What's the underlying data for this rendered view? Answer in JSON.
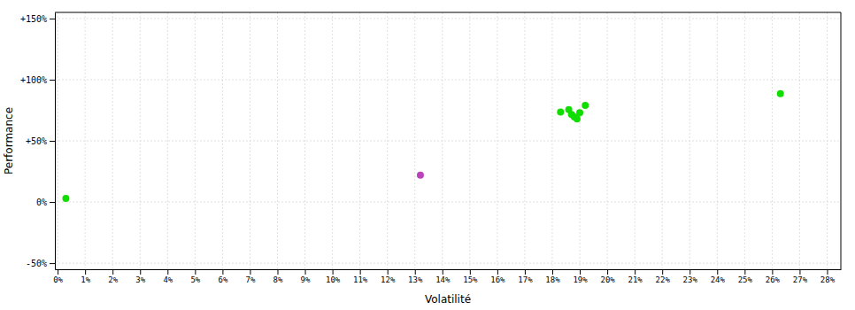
{
  "chart_data": {
    "type": "scatter",
    "xlabel": "Volatilité",
    "ylabel": "Performance",
    "xlim": [
      -0.001,
      0.285
    ],
    "ylim": [
      -0.55,
      1.55
    ],
    "grid": true,
    "xticks": [
      {
        "value": 0.0,
        "label": "0%"
      },
      {
        "value": 0.01,
        "label": "1%"
      },
      {
        "value": 0.02,
        "label": "2%"
      },
      {
        "value": 0.03,
        "label": "3%"
      },
      {
        "value": 0.04,
        "label": "4%"
      },
      {
        "value": 0.05,
        "label": "5%"
      },
      {
        "value": 0.06,
        "label": "6%"
      },
      {
        "value": 0.07,
        "label": "7%"
      },
      {
        "value": 0.08,
        "label": "8%"
      },
      {
        "value": 0.09,
        "label": "9%"
      },
      {
        "value": 0.1,
        "label": "10%"
      },
      {
        "value": 0.11,
        "label": "11%"
      },
      {
        "value": 0.12,
        "label": "12%"
      },
      {
        "value": 0.13,
        "label": "13%"
      },
      {
        "value": 0.14,
        "label": "14%"
      },
      {
        "value": 0.15,
        "label": "15%"
      },
      {
        "value": 0.16,
        "label": "16%"
      },
      {
        "value": 0.17,
        "label": "17%"
      },
      {
        "value": 0.18,
        "label": "18%"
      },
      {
        "value": 0.19,
        "label": "19%"
      },
      {
        "value": 0.2,
        "label": "20%"
      },
      {
        "value": 0.21,
        "label": "21%"
      },
      {
        "value": 0.22,
        "label": "22%"
      },
      {
        "value": 0.23,
        "label": "23%"
      },
      {
        "value": 0.24,
        "label": "24%"
      },
      {
        "value": 0.25,
        "label": "25%"
      },
      {
        "value": 0.26,
        "label": "26%"
      },
      {
        "value": 0.27,
        "label": "27%"
      },
      {
        "value": 0.28,
        "label": "28%"
      }
    ],
    "yticks": [
      {
        "value": -0.5,
        "label": "-50%"
      },
      {
        "value": 0.0,
        "label": "0%"
      },
      {
        "value": 0.5,
        "label": "+50%"
      },
      {
        "value": 1.0,
        "label": "+100%"
      },
      {
        "value": 1.5,
        "label": "+150%"
      }
    ],
    "series": [
      {
        "color": "#11dd00",
        "x": [
          0.183,
          0.186,
          0.187,
          0.188,
          0.189,
          0.19,
          0.192,
          0.263
        ],
        "values": [
          0.735,
          0.755,
          0.715,
          0.695,
          0.68,
          0.73,
          0.79,
          0.885
        ]
      },
      {
        "color": "#bb44bb",
        "x": [
          0.132
        ],
        "values": [
          0.22
        ]
      },
      {
        "color": "#11dd00",
        "x": [
          0.003
        ],
        "values": [
          0.03
        ]
      }
    ]
  }
}
